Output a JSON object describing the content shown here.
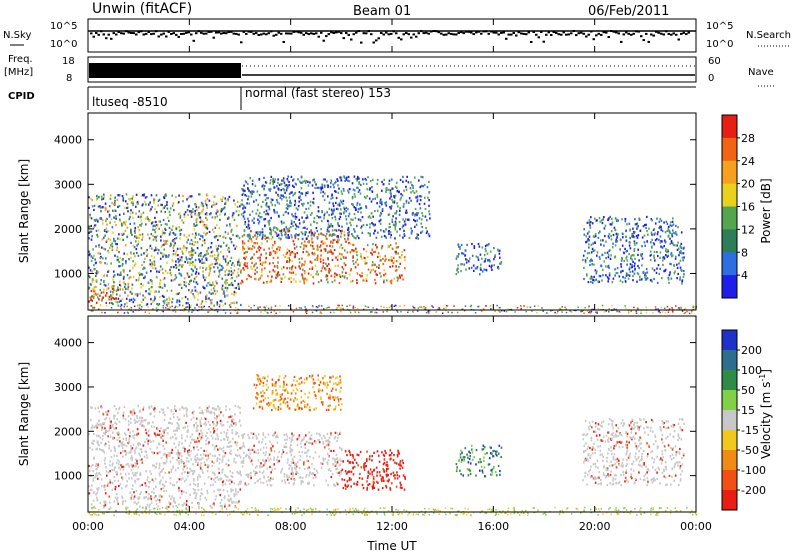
{
  "header": {
    "station": "Unwin (fitACF)",
    "beam": "Beam 01",
    "date": "06/Feb/2011"
  },
  "status_panels": {
    "nsky_label": "N.Sky",
    "nsky_ticks": [
      "10^5",
      "10^0"
    ],
    "nsearch_label": "N.Search",
    "freq_label": "Freq.",
    "freq_unit": "[MHz]",
    "freq_ticks": [
      "18",
      "8"
    ],
    "nave_label": "Nave",
    "nave_ticks": [
      "60",
      "0"
    ],
    "cpid_label": "CPID",
    "cpid_segments": [
      "ltuseq -8510",
      "normal (fast stereo) 153"
    ]
  },
  "colors": {
    "power_scale": [
      "#1e1ee8",
      "#2d6ee0",
      "#2f7d58",
      "#52a650",
      "#e8d21e",
      "#f5a01e",
      "#f06414",
      "#e61e14"
    ],
    "velocity_scale": [
      "#1e32c8",
      "#2d6e8c",
      "#2f8c46",
      "#82d046",
      "#c8c8c8",
      "#f0c81e",
      "#f08c14",
      "#f05014",
      "#e61e14"
    ]
  },
  "chart_data": [
    {
      "type": "heatmap",
      "title": "Power",
      "xlabel": "",
      "ylabel": "Slant Range [km]",
      "x_ticks": [
        "00:00",
        "04:00",
        "08:00",
        "12:00",
        "16:00",
        "20:00",
        "00:00"
      ],
      "x_range_hours": [
        0,
        24
      ],
      "y_ticks": [
        "1000",
        "2000",
        "3000",
        "4000"
      ],
      "ylim": [
        180,
        4600
      ],
      "colorbar_label": "Power [dB]",
      "colorbar_ticks": [
        "4",
        "8",
        "12",
        "16",
        "20",
        "24",
        "28"
      ],
      "clim": [
        0,
        32
      ],
      "regions": [
        {
          "t": [
            0,
            6
          ],
          "r": [
            300,
            2800
          ],
          "value": 14,
          "level": "mixed"
        },
        {
          "t": [
            0,
            1.2
          ],
          "r": [
            350,
            700
          ],
          "value": 28,
          "level": "high"
        },
        {
          "t": [
            6,
            10.3
          ],
          "r": [
            800,
            2000
          ],
          "value": 22,
          "level": "high"
        },
        {
          "t": [
            10.3,
            12.5
          ],
          "r": [
            800,
            1700
          ],
          "value": 24,
          "level": "high"
        },
        {
          "t": [
            6,
            13.5
          ],
          "r": [
            1800,
            3200
          ],
          "value": 6,
          "level": "low"
        },
        {
          "t": [
            14.5,
            16.3
          ],
          "r": [
            1000,
            1700
          ],
          "value": 9,
          "level": "low"
        },
        {
          "t": [
            19.5,
            23.5
          ],
          "r": [
            800,
            2300
          ],
          "value": 5,
          "level": "low"
        }
      ]
    },
    {
      "type": "heatmap",
      "title": "Velocity",
      "xlabel": "Time UT",
      "ylabel": "Slant Range [km]",
      "x_ticks": [
        "00:00",
        "04:00",
        "08:00",
        "12:00",
        "16:00",
        "20:00",
        "00:00"
      ],
      "x_range_hours": [
        0,
        24
      ],
      "y_ticks": [
        "1000",
        "2000",
        "3000",
        "4000"
      ],
      "ylim": [
        180,
        4600
      ],
      "colorbar_label": "Velocity [m s^-1]",
      "colorbar_ticks": [
        "200",
        "100",
        "50",
        "15",
        "-15",
        "-50",
        "-100",
        "-200"
      ],
      "clim": [
        -250,
        250
      ],
      "regions": [
        {
          "t": [
            0,
            6
          ],
          "r": [
            300,
            2600
          ],
          "value": 0,
          "level": "ground"
        },
        {
          "t": [
            6,
            10
          ],
          "r": [
            800,
            2000
          ],
          "value": 0,
          "level": "ground"
        },
        {
          "t": [
            10,
            12.5
          ],
          "r": [
            700,
            1600
          ],
          "value": -220,
          "level": "receding"
        },
        {
          "t": [
            6.5,
            10
          ],
          "r": [
            2500,
            3300
          ],
          "value": -40,
          "level": "receding"
        },
        {
          "t": [
            14.5,
            16.3
          ],
          "r": [
            1000,
            1700
          ],
          "value": 80,
          "level": "approaching"
        },
        {
          "t": [
            19.5,
            23.5
          ],
          "r": [
            800,
            2300
          ],
          "value": 5,
          "level": "ground"
        }
      ]
    }
  ],
  "labels": {
    "power_unit": "Power [dB]",
    "velocity_unit_main": "Velocity [m s",
    "velocity_unit_exp": "-1",
    "velocity_unit_close": "]",
    "xaxis_label": "Time UT"
  }
}
